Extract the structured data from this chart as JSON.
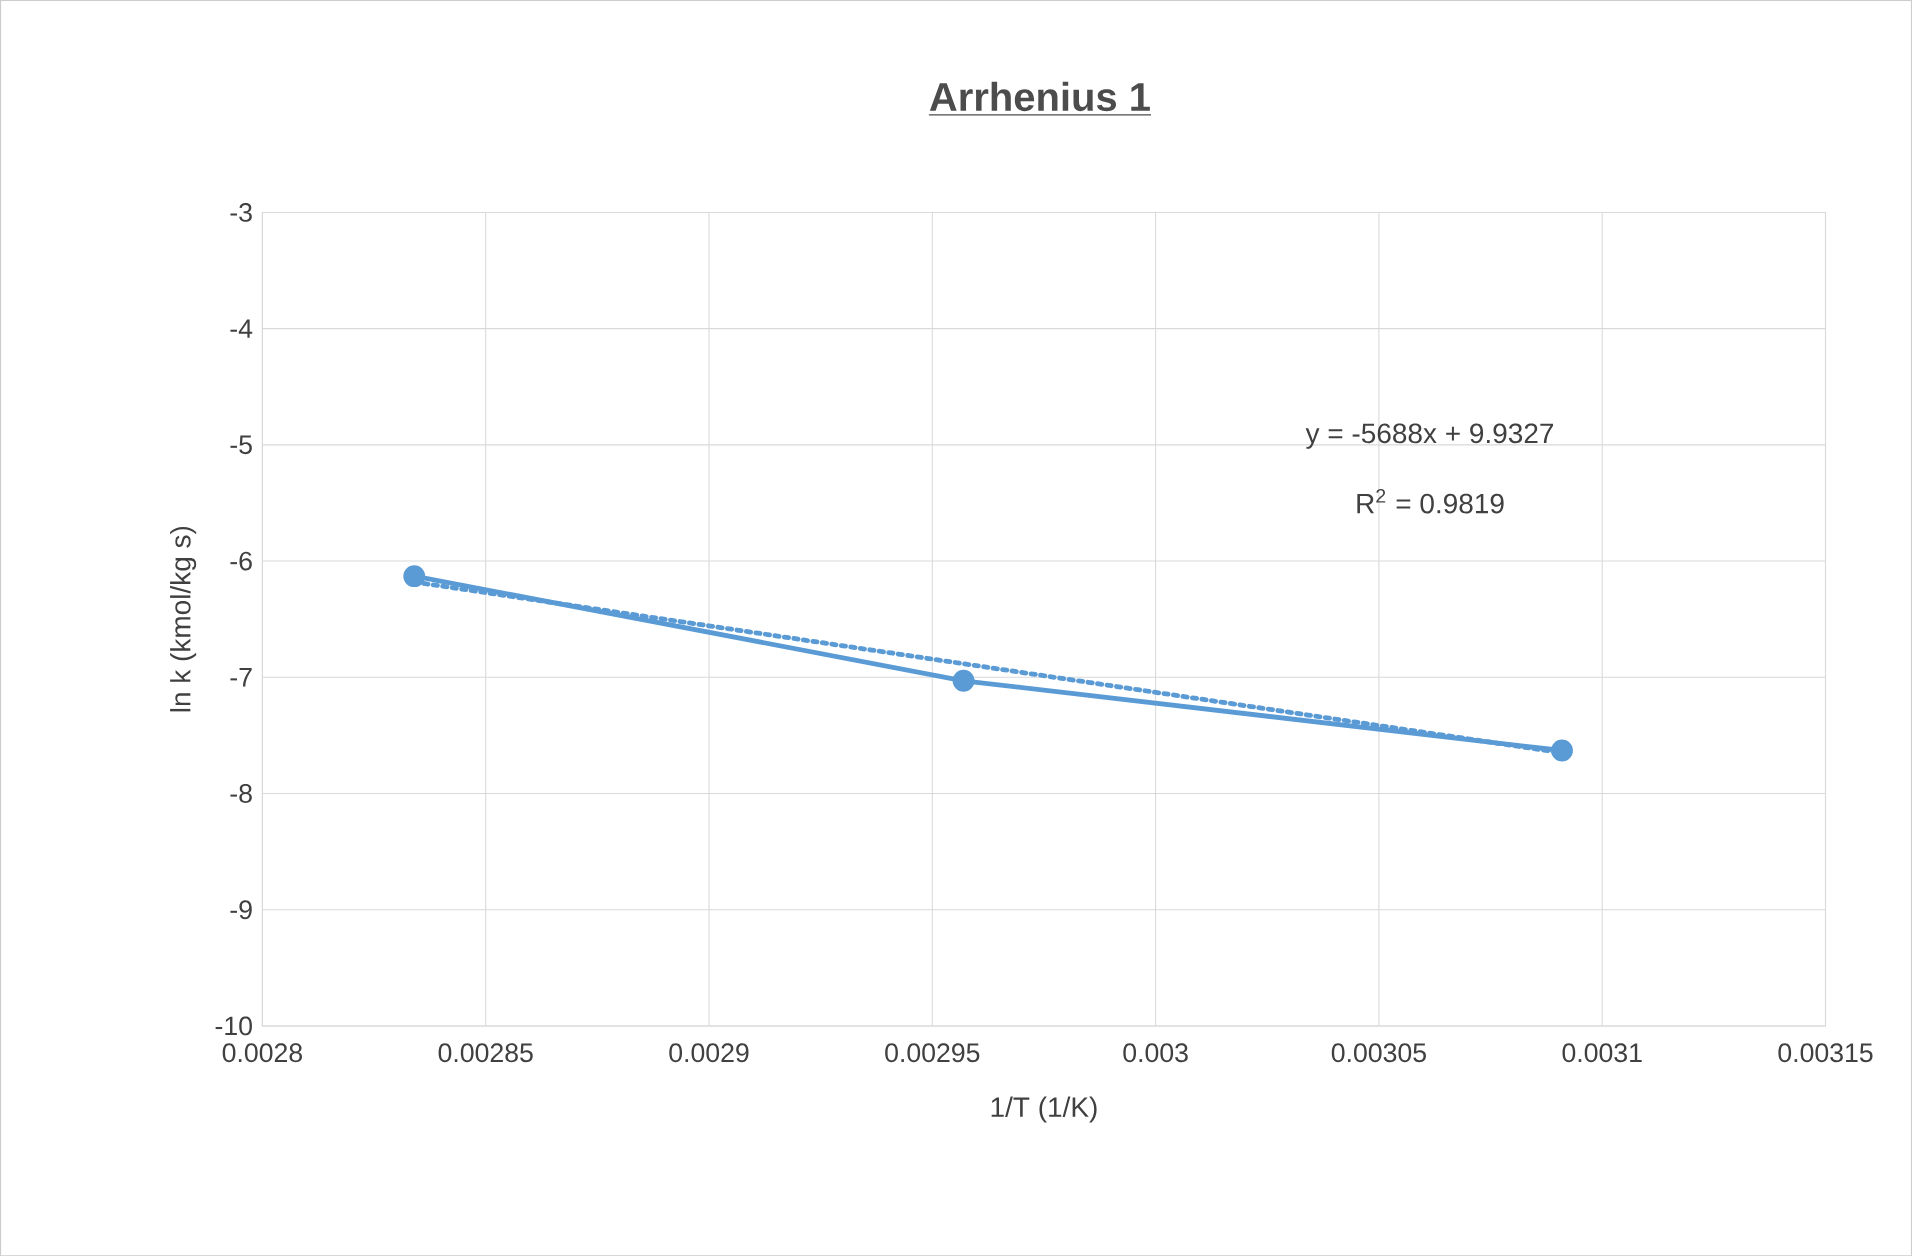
{
  "chart_data": {
    "type": "line",
    "title": "Arrhenius 1",
    "xlabel": "1/T (1/K)",
    "ylabel": "ln k (kmol/kg s)",
    "xlim": [
      0.0028,
      0.00315
    ],
    "xticks": [
      0.0028,
      0.00285,
      0.0029,
      0.00295,
      0.003,
      0.00305,
      0.0031,
      0.00315
    ],
    "ylim": [
      -10,
      -3
    ],
    "yticks": [
      -10,
      -9,
      -8,
      -7,
      -6,
      -5,
      -4,
      -3
    ],
    "grid": true,
    "series": [
      {
        "color": "#5b9bd5",
        "marker": "circle",
        "line_style": "solid",
        "x": [
          0.002834,
          0.002957,
          0.003091
        ],
        "values": [
          -6.13,
          -7.03,
          -7.63
        ]
      },
      {
        "color": "#5b9bd5",
        "marker": "none",
        "line_style": "dotted",
        "x": [
          0.002834,
          0.003091
        ],
        "values": [
          -6.18,
          -7.65
        ]
      }
    ],
    "annotations": [
      "y = -5688x + 9.9327",
      "R$^{2}$ = 0.9819"
    ]
  }
}
